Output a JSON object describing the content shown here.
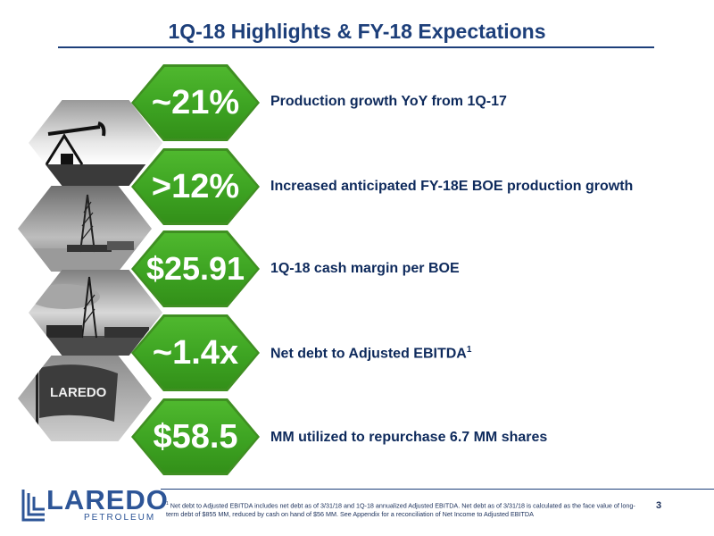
{
  "slide": {
    "title": "1Q-18 Highlights & FY-18 Expectations",
    "page_number": "3"
  },
  "highlights": [
    {
      "value": "~21%",
      "description": "Production growth YoY from 1Q-17",
      "superscript": ""
    },
    {
      "value": ">12%",
      "description": "Increased anticipated FY-18E BOE production growth",
      "superscript": ""
    },
    {
      "value": "$25.91",
      "description": "1Q-18 cash margin per BOE",
      "superscript": ""
    },
    {
      "value": "~1.4x",
      "description": "Net debt to Adjusted EBITDA",
      "superscript": "1"
    },
    {
      "value": "$58.5",
      "description": "MM utilized to repurchase 6.7 MM shares",
      "superscript": ""
    }
  ],
  "photos": [
    {
      "icon": "pumpjack-photo-icon"
    },
    {
      "icon": "drilling-rig-photo-icon"
    },
    {
      "icon": "rig-site-photo-icon"
    },
    {
      "icon": "laredo-flag-photo-icon",
      "flag_text": "LAREDO"
    }
  ],
  "footnote": {
    "marker": "1",
    "text": "Net debt to Adjusted EBITDA includes net debt as of 3/31/18 and 1Q-18 annualized Adjusted EBITDA. Net debt as of 3/31/18 is calculated as the face value of long-term debt of $855 MM, reduced by cash on hand of $56 MM. See Appendix for a reconciliation of Net Income to Adjusted EBITDA"
  },
  "logo": {
    "word": "LAREDO",
    "sub": "PETROLEUM"
  },
  "colors": {
    "navy": "#1d3f7a",
    "green": "#3da322",
    "text": "#0e2a5c"
  }
}
